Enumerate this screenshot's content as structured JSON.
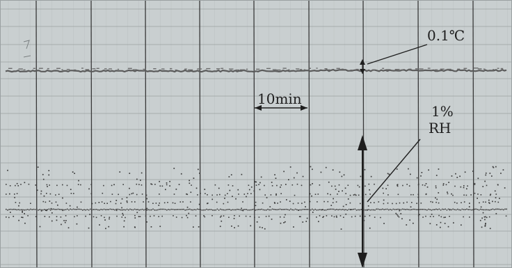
{
  "chart_data": {
    "type": "line",
    "title": "",
    "xlabel": "",
    "ylabel": "",
    "grid": true,
    "x_major_interval_min": 10,
    "series": [
      {
        "trace": "temperature",
        "style": "continuous-line",
        "level": 0.735,
        "color": "#5a5a5a"
      },
      {
        "trace": "humidity",
        "style": "scattered-dots",
        "level": 0.22,
        "color": "#3c3c3c"
      }
    ],
    "annotations": {
      "time_scale": "10min",
      "temp_resolution": "0.1℃",
      "rh_line1": "1%",
      "rh_line2": "RH"
    }
  },
  "colors": {
    "background": "#c9cfd0",
    "major_grid": "#383838",
    "minor_grid": "#9aa0a2",
    "trace": "#404040"
  }
}
